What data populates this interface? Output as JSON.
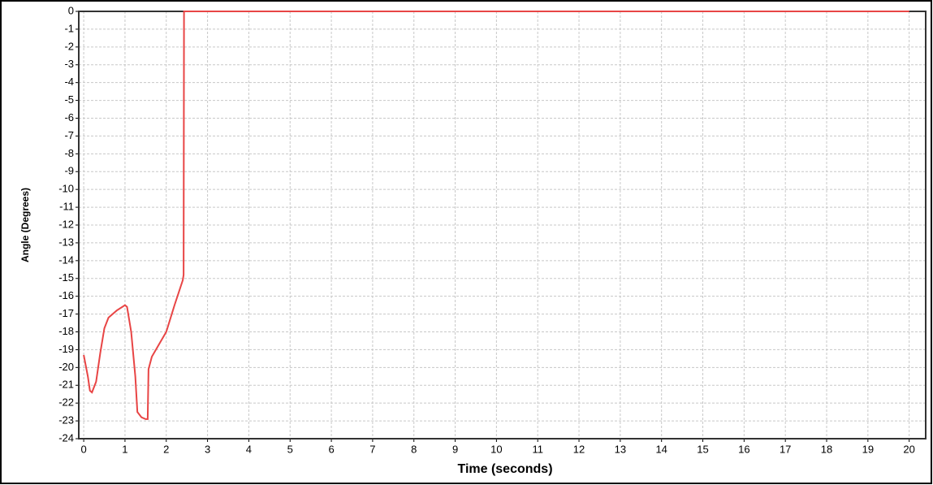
{
  "chart_data": {
    "type": "line",
    "xlabel": "Time (seconds)",
    "ylabel": "Angle (Degrees)",
    "x": [
      0,
      0.1,
      0.15,
      0.2,
      0.3,
      0.4,
      0.5,
      0.6,
      0.8,
      1.0,
      1.05,
      1.15,
      1.25,
      1.3,
      1.4,
      1.5,
      1.55,
      1.57,
      1.65,
      1.8,
      2.0,
      2.2,
      2.4,
      2.42,
      2.43,
      20
    ],
    "series": [
      {
        "name": "Angle",
        "color": "#e84545",
        "values": [
          -19.3,
          -20.5,
          -21.3,
          -21.4,
          -20.8,
          -19.2,
          -17.8,
          -17.2,
          -16.8,
          -16.5,
          -16.6,
          -18,
          -20.5,
          -22.5,
          -22.8,
          -22.9,
          -22.9,
          -20.1,
          -19.4,
          -18.8,
          -18,
          -16.5,
          -15.1,
          -14.8,
          0,
          0
        ]
      }
    ],
    "xlim": [
      -0.12,
      20.4
    ],
    "ylim": [
      -24,
      0
    ],
    "xticks": [
      0,
      1,
      2,
      3,
      4,
      5,
      6,
      7,
      8,
      9,
      10,
      11,
      12,
      13,
      14,
      15,
      16,
      17,
      18,
      19,
      20
    ],
    "yticks": [
      0,
      -1,
      -2,
      -3,
      -4,
      -5,
      -6,
      -7,
      -8,
      -9,
      -10,
      -11,
      -12,
      -13,
      -14,
      -15,
      -16,
      -17,
      -18,
      -19,
      -20,
      -21,
      -22,
      -23,
      -24
    ],
    "grid": true
  }
}
